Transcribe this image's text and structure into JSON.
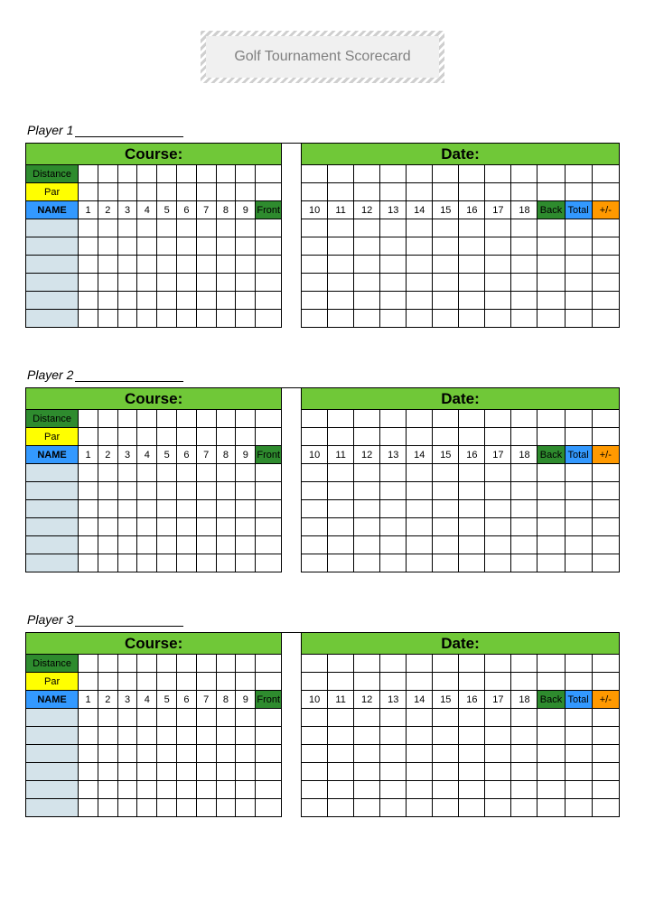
{
  "title": "Golf Tournament Scorecard",
  "players": [
    "Player 1",
    "Player 2",
    "Player 3"
  ],
  "labels": {
    "course": "Course:",
    "date": "Date:",
    "distance": "Distance",
    "par": "Par",
    "name": "NAME",
    "front": "Front",
    "back": "Back",
    "total": "Total",
    "plusminus": "+/-"
  },
  "holes_front": [
    "1",
    "2",
    "3",
    "4",
    "5",
    "6",
    "7",
    "8",
    "9"
  ],
  "holes_back": [
    "10",
    "11",
    "12",
    "13",
    "14",
    "15",
    "16",
    "17",
    "18"
  ],
  "empty_player_rows": 6,
  "colors": {
    "header_green": "#70c838",
    "dark_green": "#2e8b2e",
    "yellow": "#ffff00",
    "blue": "#3399ff",
    "orange": "#ff9900",
    "player_fill": "#d4e3ea",
    "title_text": "#808080",
    "title_bg": "#f0f0f0"
  },
  "typography": {
    "title_fontsize": 16,
    "header_fontsize": 17,
    "cell_fontsize": 11,
    "player_label_fontsize": 14
  }
}
